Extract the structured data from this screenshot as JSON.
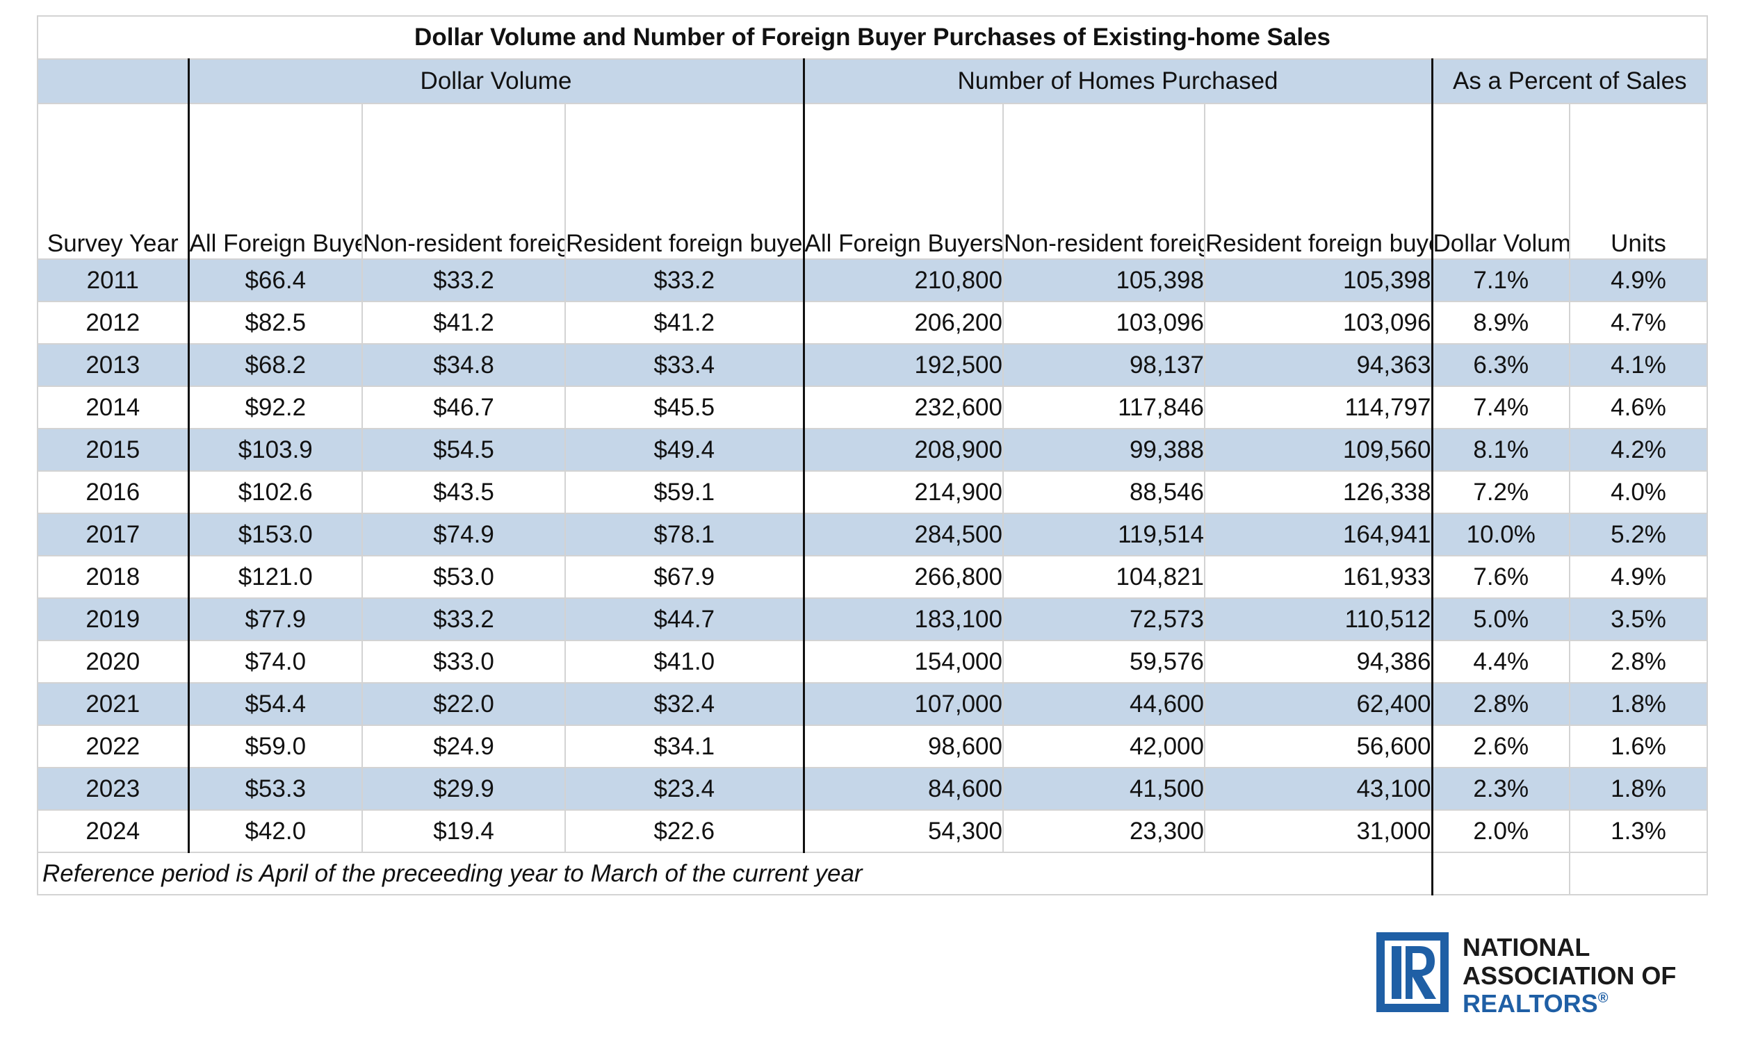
{
  "title": "Dollar Volume and Number of Foreign Buyer Purchases of Existing-home Sales",
  "groups": {
    "dollar_volume": "Dollar Volume",
    "homes": "Number of Homes Purchased",
    "percent": "As a Percent of Sales"
  },
  "headers": {
    "year": "Survey Year",
    "dv_all": "All Foreign Buyers",
    "dv_nonres": "Non-resident foreign buyer purchases (Type A)",
    "dv_res": "Resident foreign buyer purchases (Type B)",
    "n_all": "All Foreign Buyers",
    "n_nonres": "Non-resident foreign buyer purchases (Type A)",
    "n_res": "Resident foreign buyer purchases (Type B)",
    "pct_dollar": "Dollar Volume",
    "pct_units": "Units"
  },
  "chart_data": {
    "type": "table",
    "title": "Dollar Volume and Number of Foreign Buyer Purchases of Existing-home Sales",
    "columns": [
      "Survey Year",
      "All Foreign Buyers",
      "Non-resident foreign buyer purchases (Type A)",
      "Resident foreign buyer purchases (Type B)",
      "All Foreign Buyers",
      "Non-resident foreign buyer purchases (Type A)",
      "Resident foreign buyer purchases (Type B)",
      "Dollar Volume",
      "Units"
    ],
    "rows": [
      [
        "2011",
        "$66.4",
        "$33.2",
        "$33.2",
        "210,800",
        "105,398",
        "105,398",
        "7.1%",
        "4.9%"
      ],
      [
        "2012",
        "$82.5",
        "$41.2",
        "$41.2",
        "206,200",
        "103,096",
        "103,096",
        "8.9%",
        "4.7%"
      ],
      [
        "2013",
        "$68.2",
        "$34.8",
        "$33.4",
        "192,500",
        "98,137",
        "94,363",
        "6.3%",
        "4.1%"
      ],
      [
        "2014",
        "$92.2",
        "$46.7",
        "$45.5",
        "232,600",
        "117,846",
        "114,797",
        "7.4%",
        "4.6%"
      ],
      [
        "2015",
        "$103.9",
        "$54.5",
        "$49.4",
        "208,900",
        "99,388",
        "109,560",
        "8.1%",
        "4.2%"
      ],
      [
        "2016",
        "$102.6",
        "$43.5",
        "$59.1",
        "214,900",
        "88,546",
        "126,338",
        "7.2%",
        "4.0%"
      ],
      [
        "2017",
        "$153.0",
        "$74.9",
        "$78.1",
        "284,500",
        "119,514",
        "164,941",
        "10.0%",
        "5.2%"
      ],
      [
        "2018",
        "$121.0",
        "$53.0",
        "$67.9",
        "266,800",
        "104,821",
        "161,933",
        "7.6%",
        "4.9%"
      ],
      [
        "2019",
        "$77.9",
        "$33.2",
        "$44.7",
        "183,100",
        "72,573",
        "110,512",
        "5.0%",
        "3.5%"
      ],
      [
        "2020",
        "$74.0",
        "$33.0",
        "$41.0",
        "154,000",
        "59,576",
        "94,386",
        "4.4%",
        "2.8%"
      ],
      [
        "2021",
        "$54.4",
        "$22.0",
        "$32.4",
        "107,000",
        "44,600",
        "62,400",
        "2.8%",
        "1.8%"
      ],
      [
        "2022",
        "$59.0",
        "$24.9",
        "$34.1",
        "98,600",
        "42,000",
        "56,600",
        "2.6%",
        "1.6%"
      ],
      [
        "2023",
        "$53.3",
        "$29.9",
        "$23.4",
        "84,600",
        "41,500",
        "43,100",
        "2.3%",
        "1.8%"
      ],
      [
        "2024",
        "$42.0",
        "$19.4",
        "$22.6",
        "54,300",
        "23,300",
        "31,000",
        "2.0%",
        "1.3%"
      ]
    ]
  },
  "footnote": "Reference period is April of the preceeding year to March of the current year",
  "logo": {
    "line1": "NATIONAL",
    "line2": "ASSOCIATION OF",
    "line3": "REALTORS",
    "mark": "®"
  },
  "colors": {
    "band": "#c5d6e8",
    "logo_blue": "#1f5fa5",
    "logo_dark": "#1a1a1a"
  }
}
